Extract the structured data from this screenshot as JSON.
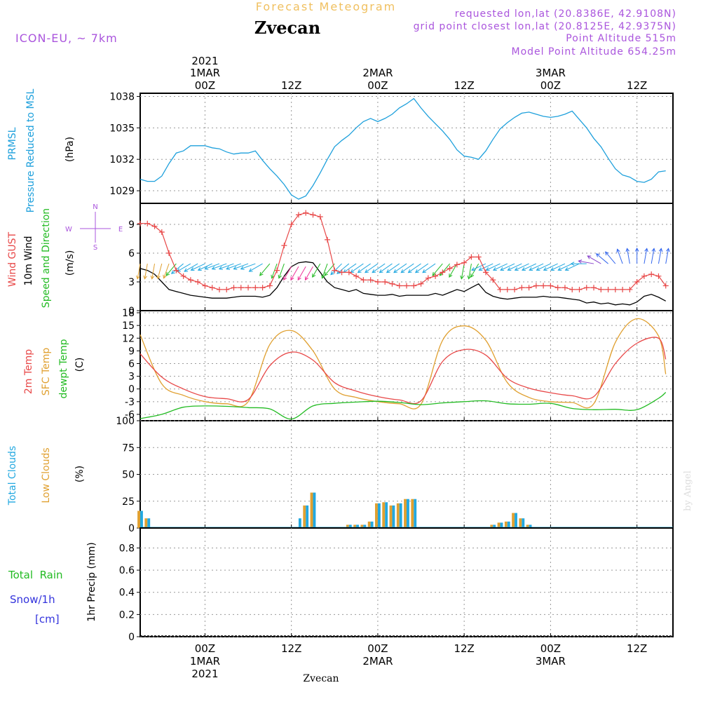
{
  "header": {
    "title_top": "Forecast Meteogram",
    "location": "Zvecan",
    "model": "ICON-EU, ~ 7km",
    "requested": "requested lon,lat (20.8386E, 42.9108N)",
    "grid_point": "grid point closest lon,lat (20.8125E, 42.9375N)",
    "point_altitude": "Point Altitude 515m",
    "model_altitude": "Model Point Altitude 654.25m",
    "footer_location": "Zvecan",
    "credit": "by Angel"
  },
  "colors": {
    "pressure": "#1ea0dc",
    "gust": "#e84848",
    "wind": "#000000",
    "t2m": "#e84848",
    "sfc": "#e0a030",
    "dewpt": "#22bb22",
    "total_clouds": "#22a8e0",
    "low_clouds": "#e0a030",
    "rain": "#22bb22",
    "snow": "#3333dd",
    "purple": "#aa55dd",
    "grid": "#999999"
  },
  "time_axis": {
    "top_ticks": [
      {
        "label1": "2021",
        "label2": "1MAR",
        "label3": "00Z"
      },
      {
        "label1": "",
        "label2": "",
        "label3": "12Z"
      },
      {
        "label1": "",
        "label2": "2MAR",
        "label3": "00Z"
      },
      {
        "label1": "",
        "label2": "",
        "label3": "12Z"
      },
      {
        "label1": "",
        "label2": "3MAR",
        "label3": "00Z"
      },
      {
        "label1": "",
        "label2": "",
        "label3": "12Z"
      }
    ],
    "bottom_ticks": [
      {
        "label1": "00Z",
        "label2": "1MAR",
        "label3": "2021"
      },
      {
        "label1": "12Z",
        "label2": "",
        "label3": ""
      },
      {
        "label1": "00Z",
        "label2": "2MAR",
        "label3": ""
      },
      {
        "label1": "12Z",
        "label2": "",
        "label3": ""
      },
      {
        "label1": "00Z",
        "label2": "3MAR",
        "label3": ""
      },
      {
        "label1": "12Z",
        "label2": "",
        "label3": ""
      }
    ]
  },
  "panel_labels": {
    "pressure": {
      "line1": "PRMSL",
      "line2": "Pressure Reduced to MSL",
      "unit": "(hPa)"
    },
    "wind": {
      "line1": "Wind GUST",
      "line2": "10m Wind",
      "line3": "Speed and Direction",
      "unit": "(m/s)",
      "compass_n": "N",
      "compass_s": "S",
      "compass_w": "W",
      "compass_e": "E"
    },
    "temp": {
      "line1": "2m Temp",
      "line2": "SFC Temp",
      "line3": "dewpt Temp",
      "unit": "(C)"
    },
    "clouds": {
      "line1": "Total Clouds",
      "line2": "Low Clouds",
      "unit": "(%)"
    },
    "precip": {
      "line1": "Total  Rain",
      "line2": "Snow/1h",
      "line3": "[cm]",
      "unit": "1hr Precip (mm)"
    }
  },
  "chart_data": [
    {
      "type": "line",
      "title": "PRMSL Pressure Reduced to MSL",
      "ylabel": "(hPa)",
      "x_hours_from_1mar_00z": [
        -9,
        -8,
        -7,
        -6,
        -5,
        -4,
        -3,
        -2,
        -1,
        0,
        1,
        2,
        3,
        4,
        5,
        6,
        7,
        8,
        9,
        10,
        11,
        12,
        13,
        14,
        15,
        16,
        17,
        18,
        19,
        20,
        21,
        22,
        23,
        24,
        25,
        26,
        27,
        28,
        29,
        30,
        31,
        32,
        33,
        34,
        35,
        36,
        37,
        38,
        39,
        40,
        41,
        42,
        43,
        44,
        45,
        46,
        47,
        48,
        49,
        50,
        51,
        52,
        53,
        54,
        55,
        56,
        57,
        58,
        59,
        60,
        61,
        62,
        63,
        64
      ],
      "yticks": [
        1029,
        1032,
        1035,
        1038
      ],
      "ylim": [
        1027.8,
        1038.3
      ],
      "series": [
        {
          "name": "PRMSL",
          "values": [
            1030.1,
            1029.9,
            1029.9,
            1030.4,
            1031.6,
            1032.6,
            1032.8,
            1033.3,
            1033.3,
            1033.3,
            1033.1,
            1033.0,
            1032.7,
            1032.5,
            1032.6,
            1032.6,
            1032.8,
            1031.9,
            1031.1,
            1030.4,
            1029.6,
            1028.6,
            1028.2,
            1028.5,
            1029.5,
            1030.7,
            1032.0,
            1033.2,
            1033.8,
            1034.3,
            1035.0,
            1035.6,
            1035.9,
            1035.6,
            1035.9,
            1036.3,
            1036.9,
            1037.3,
            1037.8,
            1036.9,
            1036.1,
            1035.4,
            1034.7,
            1033.9,
            1032.9,
            1032.3,
            1032.2,
            1032.0,
            1032.8,
            1033.9,
            1034.9,
            1035.5,
            1036.0,
            1036.4,
            1036.5,
            1036.3,
            1036.1,
            1036.0,
            1036.1,
            1036.3,
            1036.6,
            1035.8,
            1035.0,
            1034.0,
            1033.2,
            1032.1,
            1031.1,
            1030.5,
            1030.3,
            1029.9,
            1029.8,
            1030.1,
            1030.8,
            1030.9
          ]
        }
      ]
    },
    {
      "type": "line",
      "title": "Wind GUST / 10m Wind Speed and Direction",
      "ylabel": "(m/s)",
      "x_hours_from_1mar_00z": [
        -9,
        -8,
        -7,
        -6,
        -5,
        -4,
        -3,
        -2,
        -1,
        0,
        1,
        2,
        3,
        4,
        5,
        6,
        7,
        8,
        9,
        10,
        11,
        12,
        13,
        14,
        15,
        16,
        17,
        18,
        19,
        20,
        21,
        22,
        23,
        24,
        25,
        26,
        27,
        28,
        29,
        30,
        31,
        32,
        33,
        34,
        35,
        36,
        37,
        38,
        39,
        40,
        41,
        42,
        43,
        44,
        45,
        46,
        47,
        48,
        49,
        50,
        51,
        52,
        53,
        54,
        55,
        56,
        57,
        58,
        59,
        60,
        61,
        62,
        63,
        64
      ],
      "yticks": [
        0,
        3,
        6,
        9
      ],
      "ylim": [
        0,
        11.2
      ],
      "series": [
        {
          "name": "Wind GUST",
          "values": [
            9.1,
            9.1,
            8.8,
            8.2,
            6.0,
            4.2,
            3.6,
            3.2,
            3.0,
            2.6,
            2.4,
            2.2,
            2.2,
            2.4,
            2.4,
            2.4,
            2.4,
            2.4,
            2.6,
            4.2,
            6.8,
            9.0,
            10.0,
            10.2,
            10.0,
            9.8,
            7.4,
            4.2,
            4.0,
            4.0,
            3.6,
            3.2,
            3.2,
            3.0,
            3.0,
            2.8,
            2.6,
            2.6,
            2.6,
            2.8,
            3.4,
            3.6,
            4.0,
            4.4,
            4.8,
            5.0,
            5.6,
            5.6,
            4.0,
            3.2,
            2.2,
            2.2,
            2.2,
            2.4,
            2.4,
            2.6,
            2.6,
            2.6,
            2.4,
            2.4,
            2.2,
            2.2,
            2.4,
            2.4,
            2.2,
            2.2,
            2.2,
            2.2,
            2.2,
            3.0,
            3.6,
            3.8,
            3.6,
            2.6
          ]
        },
        {
          "name": "10m Wind",
          "values": [
            4.4,
            4.2,
            3.8,
            3.0,
            2.2,
            2.0,
            1.8,
            1.6,
            1.5,
            1.4,
            1.3,
            1.3,
            1.3,
            1.4,
            1.5,
            1.5,
            1.5,
            1.4,
            1.6,
            2.4,
            3.6,
            4.6,
            5.0,
            5.1,
            5.0,
            4.0,
            3.0,
            2.4,
            2.2,
            2.0,
            2.2,
            1.8,
            1.7,
            1.6,
            1.6,
            1.7,
            1.5,
            1.6,
            1.6,
            1.6,
            1.6,
            1.8,
            1.6,
            1.9,
            2.2,
            2.0,
            2.4,
            2.8,
            1.9,
            1.5,
            1.3,
            1.2,
            1.3,
            1.4,
            1.4,
            1.4,
            1.5,
            1.4,
            1.4,
            1.3,
            1.2,
            1.1,
            0.8,
            0.9,
            0.7,
            0.8,
            0.6,
            0.7,
            0.6,
            0.9,
            1.5,
            1.7,
            1.4,
            1.0
          ]
        }
      ],
      "wind_barbs": {
        "every_hour_from": -9,
        "directions_deg": [
          10,
          10,
          10,
          15,
          20,
          40,
          50,
          60,
          60,
          65,
          65,
          70,
          70,
          70,
          70,
          70,
          70,
          60,
          40,
          20,
          20,
          30,
          30,
          30,
          30,
          30,
          20,
          40,
          45,
          50,
          55,
          55,
          55,
          55,
          55,
          55,
          55,
          55,
          55,
          55,
          55,
          55,
          40,
          40,
          30,
          10,
          10,
          30,
          65,
          65,
          65,
          65,
          65,
          65,
          65,
          65,
          65,
          65,
          65,
          65,
          65,
          65,
          90,
          100,
          120,
          130,
          140,
          160,
          170,
          180,
          190,
          190,
          190,
          190
        ]
      }
    },
    {
      "type": "line",
      "title": "2m Temp / SFC Temp / dewpt Temp",
      "ylabel": "(C)",
      "x_hours_from_1mar_00z": [
        -9,
        -6,
        -3,
        0,
        3,
        6,
        9,
        12,
        15,
        18,
        21,
        24,
        27,
        30,
        33,
        36,
        39,
        42,
        45,
        48,
        51,
        54,
        57,
        60,
        63,
        64
      ],
      "yticks": [
        -6,
        -3,
        0,
        3,
        6,
        9,
        12,
        15,
        18
      ],
      "ylim": [
        -7.5,
        18.5
      ],
      "series": [
        {
          "name": "2m Temp",
          "values": [
            8.3,
            2.8,
            0.0,
            -1.8,
            -2.3,
            -2.5,
            5.5,
            8.7,
            6.8,
            1.5,
            -0.5,
            -1.8,
            -2.6,
            -2.8,
            6.5,
            9.3,
            8.0,
            2.5,
            0.2,
            -0.9,
            -1.6,
            -1.8,
            6.0,
            10.8,
            12.0,
            7.0
          ]
        },
        {
          "name": "SFC Temp",
          "values": [
            12.8,
            1.2,
            -1.5,
            -3.0,
            -3.5,
            -3.0,
            10.5,
            13.8,
            9.0,
            0.0,
            -2.0,
            -3.0,
            -3.5,
            -3.6,
            11.5,
            14.9,
            11.5,
            1.5,
            -2.0,
            -3.0,
            -3.2,
            -3.5,
            11.0,
            16.6,
            12.5,
            3.5
          ]
        },
        {
          "name": "dewpt Temp",
          "values": [
            -7.0,
            -6.0,
            -4.3,
            -4.0,
            -4.1,
            -4.4,
            -4.7,
            -7.1,
            -4.0,
            -3.4,
            -3.1,
            -2.9,
            -3.2,
            -3.7,
            -3.3,
            -3.0,
            -2.8,
            -3.5,
            -3.6,
            -3.4,
            -4.6,
            -4.9,
            -4.8,
            -4.9,
            -2.2,
            -0.8
          ]
        }
      ]
    },
    {
      "type": "bar",
      "title": "Total Clouds / Low Clouds",
      "ylabel": "(%)",
      "x_hours_from_1mar_00z": [
        -9,
        -8,
        13,
        14,
        15,
        20,
        21,
        22,
        23,
        24,
        25,
        26,
        27,
        28,
        29,
        30,
        31,
        40,
        41,
        42,
        43,
        44,
        45
      ],
      "yticks": [
        0,
        25,
        50,
        75,
        100
      ],
      "ylim": [
        0,
        100
      ],
      "series": [
        {
          "name": "Total Clouds",
          "values": [
            16,
            9,
            9,
            21,
            33,
            3,
            3,
            3,
            6,
            23,
            24,
            21,
            23,
            27,
            27,
            0,
            0,
            3,
            5,
            6,
            14,
            9,
            3
          ]
        },
        {
          "name": "Low Clouds",
          "values": [
            16,
            9,
            0,
            21,
            33,
            3,
            3,
            3,
            6,
            23,
            24,
            21,
            23,
            27,
            27,
            0,
            0,
            3,
            5,
            6,
            14,
            9,
            3
          ]
        }
      ]
    },
    {
      "type": "bar",
      "title": "1hr Precip",
      "ylabel": "1hr Precip (mm)",
      "x_hours_from_1mar_00z": [],
      "yticks": [
        0,
        0.2,
        0.4,
        0.6,
        0.8
      ],
      "ylim": [
        0,
        0.98
      ],
      "series": [
        {
          "name": "Total Rain",
          "values": []
        },
        {
          "name": "Snow/1h",
          "values": []
        }
      ]
    }
  ]
}
